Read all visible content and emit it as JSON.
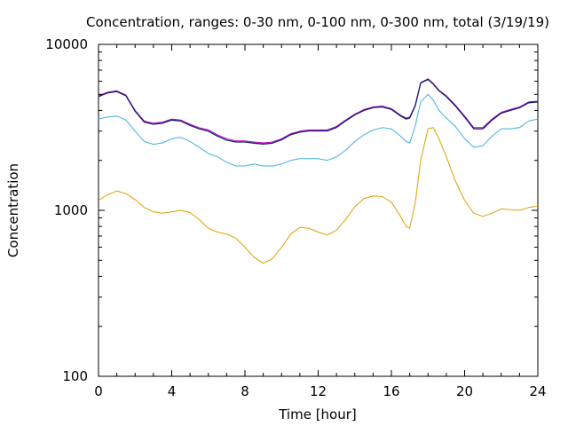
{
  "chart_data": {
    "type": "line",
    "title": "Concentration, ranges: 0-30 nm, 0-100 nm, 0-300 nm, total (3/19/19)",
    "xlabel": "Time [hour]",
    "ylabel": "Concentration",
    "xlim": [
      0,
      24
    ],
    "ylim": [
      100,
      10000
    ],
    "yscale": "log",
    "grid": false,
    "legend": "none",
    "x_ticks": [
      "0",
      "4",
      "8",
      "12",
      "16",
      "20",
      "24"
    ],
    "y_ticks": [
      "100",
      "1000",
      "10000"
    ],
    "series": [
      {
        "color": "#e0a000",
        "x": [
          0,
          0.5,
          1,
          1.5,
          2,
          2.5,
          3,
          3.5,
          4,
          4.5,
          5,
          5.5,
          6,
          6.5,
          7,
          7.5,
          8,
          8.5,
          9,
          9.5,
          10,
          10.5,
          11,
          11.5,
          12,
          12.5,
          13,
          13.5,
          14,
          14.5,
          15,
          15.5,
          16,
          16.5,
          16.8,
          17,
          17.3,
          17.6,
          18,
          18.3,
          18.6,
          19,
          19.5,
          20,
          20.5,
          21,
          21.5,
          22,
          22.5,
          23,
          23.5,
          24
        ],
        "y": [
          1150,
          1240,
          1310,
          1260,
          1160,
          1040,
          980,
          960,
          980,
          1000,
          970,
          880,
          780,
          740,
          720,
          680,
          600,
          520,
          480,
          510,
          600,
          720,
          790,
          780,
          740,
          710,
          760,
          880,
          1050,
          1180,
          1220,
          1210,
          1120,
          920,
          800,
          780,
          1100,
          2000,
          3100,
          3150,
          2700,
          2100,
          1500,
          1150,
          960,
          920,
          960,
          1020,
          1010,
          1000,
          1040,
          1060
        ]
      },
      {
        "color": "#3fb0e0",
        "x": [
          0,
          0.5,
          1,
          1.5,
          2,
          2.5,
          3,
          3.5,
          4,
          4.5,
          5,
          5.5,
          6,
          6.5,
          7,
          7.5,
          8,
          8.5,
          9,
          9.5,
          10,
          10.5,
          11,
          11.5,
          12,
          12.5,
          13,
          13.5,
          14,
          14.5,
          15,
          15.5,
          16,
          16.5,
          16.8,
          17,
          17.3,
          17.6,
          18,
          18.3,
          18.6,
          19,
          19.5,
          20,
          20.5,
          21,
          21.5,
          22,
          22.5,
          23,
          23.5,
          24
        ],
        "y": [
          3550,
          3650,
          3700,
          3500,
          3000,
          2600,
          2500,
          2550,
          2700,
          2750,
          2600,
          2400,
          2200,
          2100,
          1950,
          1850,
          1850,
          1900,
          1850,
          1850,
          1900,
          2000,
          2050,
          2050,
          2050,
          2000,
          2100,
          2300,
          2600,
          2850,
          3050,
          3150,
          3100,
          2800,
          2600,
          2550,
          3200,
          4500,
          5000,
          4600,
          4000,
          3600,
          3200,
          2700,
          2400,
          2450,
          2800,
          3100,
          3100,
          3150,
          3450,
          3550
        ]
      },
      {
        "color": "#c000c0",
        "x": [
          0,
          0.5,
          1,
          1.5,
          2,
          2.5,
          3,
          3.5,
          4,
          4.5,
          5,
          5.5,
          6,
          6.5,
          7,
          7.5,
          8,
          8.5,
          9,
          9.5,
          10,
          10.5,
          11,
          11.5,
          12,
          12.5,
          13,
          13.5,
          14,
          14.5,
          15,
          15.5,
          16,
          16.5,
          16.8,
          17,
          17.3,
          17.6,
          18,
          18.3,
          18.6,
          19,
          19.5,
          20,
          20.5,
          21,
          21.5,
          22,
          22.5,
          23,
          23.5,
          24
        ],
        "y": [
          4900,
          5150,
          5250,
          4950,
          4000,
          3450,
          3350,
          3400,
          3550,
          3500,
          3300,
          3150,
          3050,
          2850,
          2700,
          2620,
          2620,
          2580,
          2550,
          2580,
          2700,
          2900,
          3000,
          3050,
          3050,
          3050,
          3200,
          3500,
          3800,
          4050,
          4200,
          4250,
          4100,
          3750,
          3600,
          3650,
          4300,
          5900,
          6200,
          5800,
          5300,
          4900,
          4300,
          3700,
          3150,
          3150,
          3550,
          3900,
          4050,
          4200,
          4500,
          4550
        ]
      },
      {
        "color": "#102070",
        "x": [
          0,
          0.5,
          1,
          1.5,
          2,
          2.5,
          3,
          3.5,
          4,
          4.5,
          5,
          5.5,
          6,
          6.5,
          7,
          7.5,
          8,
          8.5,
          9,
          9.5,
          10,
          10.5,
          11,
          11.5,
          12,
          12.5,
          13,
          13.5,
          14,
          14.5,
          15,
          15.5,
          16,
          16.5,
          16.8,
          17,
          17.3,
          17.6,
          18,
          18.3,
          18.6,
          19,
          19.5,
          20,
          20.5,
          21,
          21.5,
          22,
          22.5,
          23,
          23.5,
          24
        ],
        "y": [
          4850,
          5100,
          5200,
          4900,
          3950,
          3400,
          3300,
          3350,
          3500,
          3450,
          3250,
          3100,
          3000,
          2800,
          2650,
          2580,
          2580,
          2540,
          2510,
          2540,
          2660,
          2860,
          2960,
          3010,
          3010,
          3010,
          3160,
          3460,
          3760,
          4000,
          4160,
          4200,
          4060,
          3700,
          3550,
          3600,
          4250,
          5850,
          6150,
          5750,
          5250,
          4850,
          4250,
          3650,
          3100,
          3100,
          3500,
          3850,
          4000,
          4150,
          4450,
          4500
        ]
      }
    ]
  }
}
